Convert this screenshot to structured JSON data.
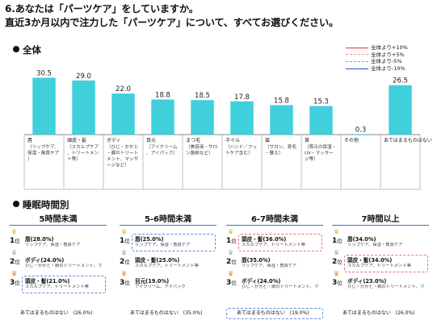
{
  "question": {
    "line1": "6.あなたは「パーツケア」をしていますか。",
    "line2": "直近3か月以内で注力した「パーツケア」について、すべてお選びください。"
  },
  "section_total": "全体",
  "section_sleep": "睡眠時間別",
  "legend": [
    {
      "label": "全体より+10%",
      "color": "#e8323c",
      "style": "solid"
    },
    {
      "label": "全体より+5%",
      "color": "#e8909c",
      "style": "dashed"
    },
    {
      "label": "全体より-5%",
      "color": "#7aa0dc",
      "style": "dashed"
    },
    {
      "label": "全体より-10%",
      "color": "#1f4fc8",
      "style": "solid"
    }
  ],
  "chart_data": {
    "type": "bar",
    "categories": [
      "唇",
      "頭皮・髪",
      "ボディ",
      "目元",
      "まつ毛",
      "ネイル",
      "眉",
      "首",
      "その他",
      "あてはまるものはない"
    ],
    "category_notes": [
      "（リップケア、保湿・角質ケア）",
      "（スカルプケア、トリートメント等）",
      "（ひじ・かかと・脚のトリートメント、マッサージなど）",
      "（アイクリーム、アイパック）",
      "（美容液・サロン施術など）",
      "（ハンド／フットケア含む）",
      "（サロン、育毛・整え）",
      "（首元の保湿・UV・マッサージ等）",
      "",
      ""
    ],
    "values": [
      30.5,
      29.0,
      22.0,
      18.8,
      18.5,
      17.8,
      15.8,
      15.3,
      0.3,
      26.5
    ],
    "value_labels": [
      "30.5",
      "29.0",
      "22.0",
      "18.8",
      "18.5",
      "17.8",
      "15.8",
      "15.3",
      "0.3",
      "26.5"
    ],
    "ylim": [
      0,
      35
    ],
    "color": "#3fd0dc",
    "grid": false
  },
  "rank_label_suffix": "位",
  "panels": [
    {
      "title": "5時間未満",
      "ranks": [
        {
          "rank": "1",
          "name": "唇(28.0%)",
          "desc": "リップケア、保湿・角質ケア",
          "border": "none"
        },
        {
          "rank": "2",
          "name": "ボディ(24.0%)",
          "desc": "ひじ・かかと・脚のトリートメント、マッサージなど",
          "border": "none"
        },
        {
          "rank": "3",
          "name": "頭皮・髪(21.0%)",
          "desc": "スカルプケア、トリートメント等",
          "border": "blue"
        }
      ],
      "none_text": "あてはまるものはない　(26.0%)",
      "none_border": "none"
    },
    {
      "title": "5-6時間未満",
      "ranks": [
        {
          "rank": "1",
          "name": "唇(25.0%)",
          "desc": "リップケア、保湿・角質ケア",
          "border": "blue"
        },
        {
          "rank": "2",
          "name": "頭皮・髪(25.0%)",
          "desc": "スカルプケア、トリートメント等",
          "border": "none"
        },
        {
          "rank": "3",
          "name": "目元(19.0%)",
          "desc": "アイクリーム、アイパック",
          "border": "none"
        }
      ],
      "none_text": "あてはまるものはない　(35.0%)",
      "none_border": "none"
    },
    {
      "title": "6-7時間未満",
      "ranks": [
        {
          "rank": "1",
          "name": "頭皮・髪(36.0%)",
          "desc": "スカルプケア、トリートメント等",
          "border": "red"
        },
        {
          "rank": "2",
          "name": "唇(35.0%)",
          "desc": "リップケア、保湿・角質ケア",
          "border": "none"
        },
        {
          "rank": "3",
          "name": "ボディ(24.0%)",
          "desc": "ひじ・かかと・脚のトリートメント、マッサージなど",
          "border": "none"
        }
      ],
      "none_text": "あてはまるものはない　(19.0%)",
      "none_border": "blue"
    },
    {
      "title": "7時間以上",
      "ranks": [
        {
          "rank": "1",
          "name": "唇(34.0%)",
          "desc": "リップケア、保湿・角質ケア",
          "border": "none"
        },
        {
          "rank": "2",
          "name": "頭皮・髪(34.0%)",
          "desc": "スカルプケア、トリートメント等",
          "border": "red"
        },
        {
          "rank": "3",
          "name": "ボディ(23.0%)",
          "desc": "ひじ・かかと・脚のトリートメント、マッサージなど",
          "border": "none"
        }
      ],
      "none_text": "あてはまるものはない　(26.0%)",
      "none_border": "none"
    }
  ]
}
